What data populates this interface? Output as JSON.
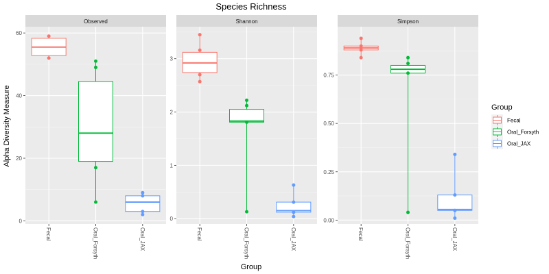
{
  "title": "Species Richness",
  "xlabel": "Group",
  "ylabel": "Alpha Diversity Measure",
  "legend": {
    "title": "Group",
    "placement": "right",
    "items": [
      {
        "label": "Fecal",
        "color": "#F8766D"
      },
      {
        "label": "Oral_Forsyth",
        "color": "#00BA38"
      },
      {
        "label": "Oral_JAX",
        "color": "#619CFF"
      }
    ]
  },
  "colors": {
    "panel_bg": "#EBEBEB",
    "strip_bg": "#D9D9D9",
    "grid_major": "#FFFFFF",
    "Fecal": "#F8766D",
    "Oral_Forsyth": "#00BA38",
    "Oral_JAX": "#619CFF"
  },
  "chart_data": {
    "type": "box",
    "categories": [
      "Fecal",
      "Oral_Forsyth",
      "Oral_JAX"
    ],
    "grid": true,
    "facets": [
      {
        "name": "Observed",
        "ylim": [
          -1,
          62
        ],
        "yticks": [
          0,
          20,
          40,
          60
        ],
        "ytick_labels": [
          "0",
          "20",
          "40",
          "60"
        ],
        "groups": [
          {
            "category": "Fecal",
            "min": 52,
            "q1": 52.8,
            "median": 55.5,
            "q3": 58.3,
            "max": 59,
            "points": [
              59,
              52
            ]
          },
          {
            "category": "Oral_Forsyth",
            "min": 6,
            "q1": 19,
            "median": 28,
            "q3": 44.5,
            "max": 51,
            "points": [
              51,
              49,
              17,
              6
            ]
          },
          {
            "category": "Oral_JAX",
            "min": 2,
            "q1": 3,
            "median": 6,
            "q3": 8,
            "max": 9,
            "points": [
              9,
              8,
              3,
              2
            ]
          }
        ]
      },
      {
        "name": "Shannon",
        "ylim": [
          -0.1,
          3.6
        ],
        "yticks": [
          0,
          1,
          2,
          3
        ],
        "ytick_labels": [
          "0",
          "1",
          "2",
          "3"
        ],
        "groups": [
          {
            "category": "Fecal",
            "min": 2.57,
            "q1": 2.74,
            "median": 2.92,
            "q3": 3.12,
            "max": 3.45,
            "points": [
              3.45,
              3.16,
              2.7,
              2.57
            ]
          },
          {
            "category": "Oral_Forsyth",
            "min": 0.13,
            "q1": 1.81,
            "median": 1.83,
            "q3": 2.05,
            "max": 2.22,
            "points": [
              2.22,
              2.12,
              1.81,
              0.13
            ]
          },
          {
            "category": "Oral_JAX",
            "min": 0.04,
            "q1": 0.12,
            "median": 0.15,
            "q3": 0.31,
            "max": 0.63,
            "points": [
              0.63,
              0.31,
              0.12,
              0.04
            ]
          }
        ]
      },
      {
        "name": "Simpson",
        "ylim": [
          -0.02,
          1.0
        ],
        "yticks": [
          0,
          0.25,
          0.5,
          0.75
        ],
        "ytick_labels": [
          "0.00",
          "0.25",
          "0.50",
          "0.75"
        ],
        "groups": [
          {
            "category": "Fecal",
            "min": 0.84,
            "q1": 0.88,
            "median": 0.89,
            "q3": 0.9,
            "max": 0.94,
            "points": [
              0.94,
              0.9,
              0.88,
              0.84
            ]
          },
          {
            "category": "Oral_Forsyth",
            "min": 0.04,
            "q1": 0.76,
            "median": 0.78,
            "q3": 0.8,
            "max": 0.84,
            "points": [
              0.84,
              0.81,
              0.76,
              0.04
            ]
          },
          {
            "category": "Oral_JAX",
            "min": 0.01,
            "q1": 0.05,
            "median": 0.055,
            "q3": 0.13,
            "max": 0.34,
            "points": [
              0.34,
              0.13,
              0.05,
              0.01
            ]
          }
        ]
      }
    ]
  }
}
